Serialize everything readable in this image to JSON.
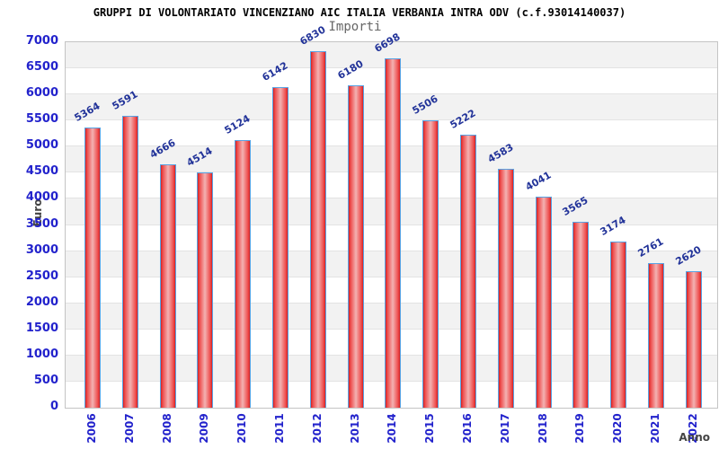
{
  "title": "GRUPPI DI VOLONTARIATO VINCENZIANO AIC ITALIA VERBANIA INTRA ODV (c.f.93014140037)",
  "subtitle": "Importi",
  "chart_data": {
    "type": "bar",
    "title": "GRUPPI DI VOLONTARIATO VINCENZIANO AIC ITALIA VERBANIA INTRA ODV (c.f.93014140037)",
    "subtitle": "Importi",
    "xlabel": "Anno",
    "ylabel": "Euro",
    "categories": [
      "2006",
      "2007",
      "2008",
      "2009",
      "2010",
      "2011",
      "2012",
      "2013",
      "2014",
      "2015",
      "2016",
      "2017",
      "2018",
      "2019",
      "2020",
      "2021",
      "2022"
    ],
    "values": [
      5364,
      5591,
      4666,
      4514,
      5124,
      6142,
      6830,
      6180,
      6698,
      5506,
      5222,
      4583,
      4041,
      3565,
      3174,
      2761,
      2620
    ],
    "ylim": [
      0,
      7000
    ],
    "ytick_step": 500,
    "grid": true,
    "legend_position": "none",
    "colors": {
      "bar_edge": "#d42222",
      "bar_mid": "#ee4a4a",
      "bar_center": "#f3b2b2",
      "bar_border": "#58a3e4",
      "value_label": "#223399",
      "tick_label": "#2222cc",
      "axis_label": "#444444",
      "band_gray": "#f2f2f2",
      "band_white": "#ffffff",
      "gridline": "#e3e3e3",
      "plot_border": "#c4c4c4",
      "title_color": "#000000",
      "subtitle_color": "#666666"
    }
  }
}
